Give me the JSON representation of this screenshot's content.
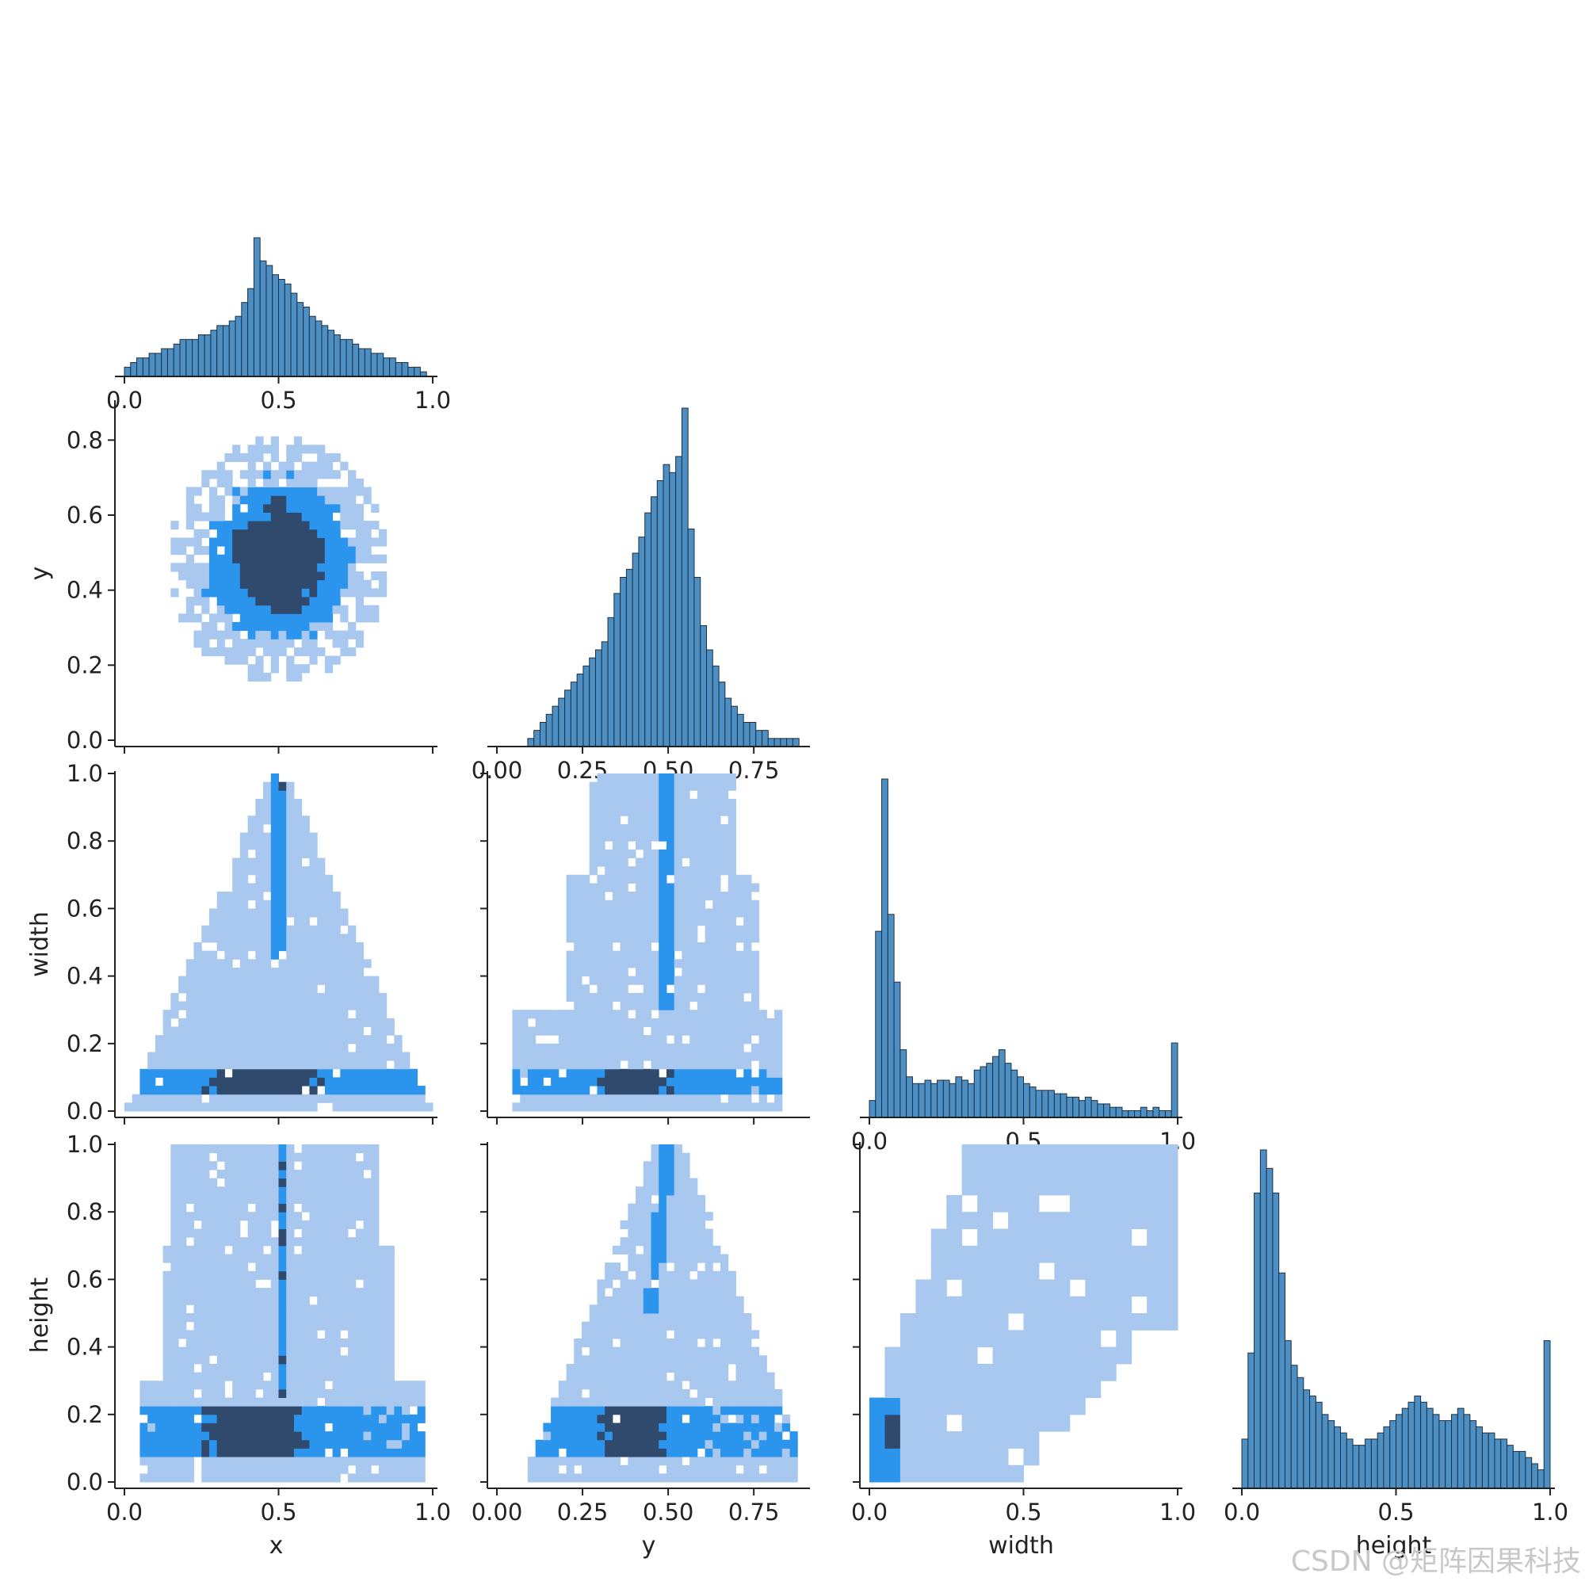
{
  "figure": {
    "watermark": "CSDN @矩阵因果科技",
    "colors": {
      "hist_fill": "#4c8fc4",
      "hist_edge": "#1f2f3f",
      "heat_light": "#a8c8ef",
      "heat_mid": "#2b95ee",
      "heat_dark": "#2f4a6c"
    }
  },
  "chart_data": [
    {
      "id": "hist-x",
      "type": "bar",
      "panel": "x/x",
      "xlabel": "",
      "ylabel": "",
      "xlim": [
        0,
        1
      ],
      "xticks": [
        "0.0",
        "0.5",
        "1.0"
      ],
      "bins": 50,
      "values": [
        2,
        3,
        4,
        4,
        5,
        5,
        6,
        6,
        7,
        8,
        8,
        8,
        9,
        9,
        10,
        11,
        11,
        12,
        13,
        16,
        19,
        30,
        25,
        24,
        22,
        21,
        20,
        18,
        16,
        15,
        13,
        12,
        11,
        10,
        9,
        8,
        8,
        7,
        6,
        6,
        5,
        5,
        4,
        4,
        3,
        3,
        2,
        2,
        1,
        0
      ]
    },
    {
      "id": "hist-y",
      "type": "bar",
      "panel": "y/y",
      "xlabel": "",
      "ylabel": "",
      "xlim": [
        0,
        0.9
      ],
      "xticks": [
        "0.00",
        "0.25",
        "0.50",
        "0.75"
      ],
      "bins": 50,
      "values": [
        0,
        0,
        0,
        0,
        0,
        1,
        2,
        3,
        4,
        5,
        6,
        7,
        8,
        9,
        10,
        11,
        12,
        13,
        16,
        19,
        21,
        22,
        24,
        26,
        29,
        31,
        33,
        35,
        34,
        36,
        42,
        27,
        21,
        15,
        12,
        10,
        8,
        6,
        5,
        4,
        3,
        3,
        2,
        2,
        1,
        1,
        1,
        1,
        1,
        0
      ]
    },
    {
      "id": "hist-width",
      "type": "bar",
      "panel": "width/width",
      "xlabel": "",
      "ylabel": "",
      "xlim": [
        0,
        1
      ],
      "xticks": [
        "0.0",
        "0.5",
        "1.0"
      ],
      "bins": 50,
      "values": [
        5,
        55,
        100,
        60,
        40,
        20,
        12,
        10,
        10,
        11,
        10,
        11,
        11,
        10,
        12,
        11,
        10,
        14,
        15,
        16,
        18,
        20,
        16,
        14,
        12,
        10,
        9,
        8,
        8,
        8,
        7,
        7,
        6,
        6,
        5,
        6,
        5,
        4,
        4,
        3,
        3,
        2,
        2,
        2,
        3,
        2,
        3,
        2,
        2,
        22
      ]
    },
    {
      "id": "hist-height",
      "type": "bar",
      "panel": "height/height",
      "xlabel": "height",
      "ylabel": "",
      "xlim": [
        0,
        1
      ],
      "xticks": [
        "0.0",
        "0.5",
        "1.0"
      ],
      "bins": 50,
      "values": [
        8,
        22,
        48,
        55,
        52,
        48,
        35,
        24,
        20,
        18,
        16,
        15,
        14,
        12,
        11,
        10,
        9,
        8,
        7,
        7,
        8,
        8,
        9,
        10,
        11,
        12,
        13,
        14,
        15,
        14,
        13,
        12,
        11,
        11,
        12,
        13,
        12,
        11,
        10,
        9,
        9,
        8,
        8,
        7,
        6,
        6,
        5,
        4,
        3,
        24
      ]
    },
    {
      "id": "heat-x-y",
      "type": "heatmap",
      "panel": "x vs y",
      "xlabel": "",
      "ylabel": "y",
      "xlim": [
        0,
        1
      ],
      "ylim": [
        0,
        0.9
      ],
      "yticks": [
        "0.0",
        "0.2",
        "0.4",
        "0.6",
        "0.8"
      ],
      "note": "dense roughly circular cloud centred near x=0.5, y=0.5"
    },
    {
      "id": "heat-x-width",
      "type": "heatmap",
      "panel": "x vs width",
      "xlabel": "",
      "ylabel": "width",
      "xlim": [
        0,
        1
      ],
      "ylim": [
        0,
        1
      ],
      "yticks": [
        "0.0",
        "0.2",
        "0.4",
        "0.6",
        "0.8",
        "1.0"
      ],
      "note": "triangular region peaking at width=1 near x=0.5; dense band at width≈0.1"
    },
    {
      "id": "heat-y-width",
      "type": "heatmap",
      "panel": "y vs width",
      "xlabel": "",
      "ylabel": "",
      "xlim": [
        0,
        0.9
      ],
      "ylim": [
        0,
        1
      ],
      "note": "broad region; dense band near width≈0.1 around y≈0.4"
    },
    {
      "id": "heat-x-height",
      "type": "heatmap",
      "panel": "x vs height",
      "xlabel": "x",
      "ylabel": "height",
      "xlim": [
        0,
        1
      ],
      "ylim": [
        0,
        1
      ],
      "xticks": [
        "0.0",
        "0.5",
        "1.0"
      ],
      "yticks": [
        "0.0",
        "0.2",
        "0.4",
        "0.6",
        "0.8",
        "1.0"
      ],
      "note": "broad region; vertical dense column at x≈0.5; dense band at height≈0.15"
    },
    {
      "id": "heat-y-height",
      "type": "heatmap",
      "panel": "y vs height",
      "xlabel": "y",
      "ylabel": "",
      "xlim": [
        0,
        0.9
      ],
      "ylim": [
        0,
        1
      ],
      "xticks": [
        "0.00",
        "0.25",
        "0.50",
        "0.75"
      ],
      "note": "triangular region peaking at height=1 near y=0.5; dense band at height≈0.15"
    },
    {
      "id": "heat-width-height",
      "type": "heatmap",
      "panel": "width vs height",
      "xlabel": "width",
      "ylabel": "",
      "xlim": [
        0,
        1
      ],
      "ylim": [
        0,
        1
      ],
      "xticks": [
        "0.0",
        "0.5",
        "1.0"
      ],
      "note": "upper-left triangular light region; dark cell near width≈0.08, height≈0.15"
    }
  ]
}
